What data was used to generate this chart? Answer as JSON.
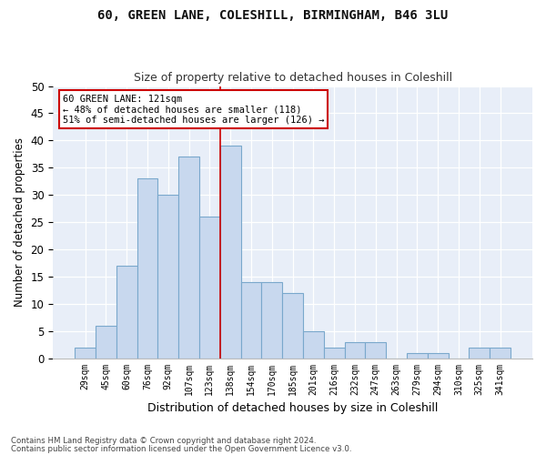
{
  "title1": "60, GREEN LANE, COLESHILL, BIRMINGHAM, B46 3LU",
  "title2": "Size of property relative to detached houses in Coleshill",
  "xlabel": "Distribution of detached houses by size in Coleshill",
  "ylabel": "Number of detached properties",
  "categories": [
    "29sqm",
    "45sqm",
    "60sqm",
    "76sqm",
    "92sqm",
    "107sqm",
    "123sqm",
    "138sqm",
    "154sqm",
    "170sqm",
    "185sqm",
    "201sqm",
    "216sqm",
    "232sqm",
    "247sqm",
    "263sqm",
    "279sqm",
    "294sqm",
    "310sqm",
    "325sqm",
    "341sqm"
  ],
  "values": [
    2,
    6,
    17,
    33,
    30,
    37,
    26,
    39,
    14,
    14,
    12,
    5,
    2,
    3,
    3,
    0,
    1,
    1,
    0,
    2,
    2
  ],
  "bar_color": "#c8d8ee",
  "bar_edge_color": "#7aa8cc",
  "vline_x": 6.5,
  "vline_color": "#cc0000",
  "annotation_lines": [
    "60 GREEN LANE: 121sqm",
    "← 48% of detached houses are smaller (118)",
    "51% of semi-detached houses are larger (126) →"
  ],
  "annotation_box_color": "#ffffff",
  "annotation_box_edge": "#cc0000",
  "ylim": [
    0,
    50
  ],
  "yticks": [
    0,
    5,
    10,
    15,
    20,
    25,
    30,
    35,
    40,
    45,
    50
  ],
  "background_color": "#e8eef8",
  "footer1": "Contains HM Land Registry data © Crown copyright and database right 2024.",
  "footer2": "Contains public sector information licensed under the Open Government Licence v3.0."
}
